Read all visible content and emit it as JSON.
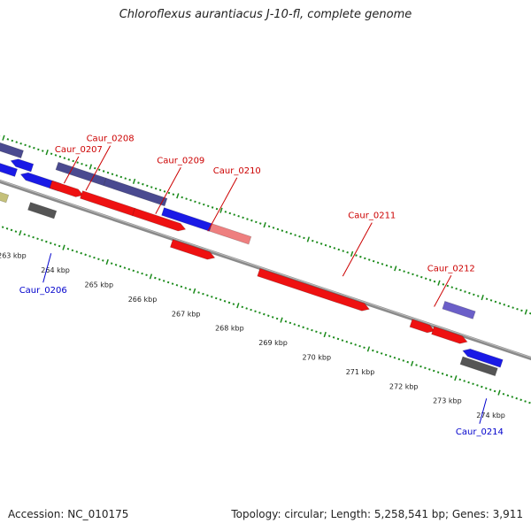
{
  "title": "Chloroflexus aurantiacus J-10-fl, complete genome",
  "footer": {
    "accession": "Accession: NC_010175",
    "stats": "Topology: circular; Length: 5,258,541 bp; Genes: 3,911"
  },
  "colors": {
    "backbone": "#8a8a8a",
    "tick": "#1a8a1a",
    "label_forward": "#cc0000",
    "label_reverse": "#0000cc",
    "red": "#ee1111",
    "blue": "#1a1ae6",
    "slate": "#4a4a90",
    "pink": "#ee7f7f",
    "khaki": "#c4c07a",
    "gray": "#555555",
    "purple": "#6b5fc8"
  },
  "kbp_ticks": [
    {
      "kbp": 263,
      "label": "263 kbp"
    },
    {
      "kbp": 264,
      "label": "264 kbp"
    },
    {
      "kbp": 265,
      "label": "265 kbp"
    },
    {
      "kbp": 266,
      "label": "266 kbp"
    },
    {
      "kbp": 267,
      "label": "267 kbp"
    },
    {
      "kbp": 268,
      "label": "268 kbp"
    },
    {
      "kbp": 269,
      "label": "269 kbp"
    },
    {
      "kbp": 270,
      "label": "270 kbp"
    },
    {
      "kbp": 271,
      "label": "271 kbp"
    },
    {
      "kbp": 272,
      "label": "272 kbp"
    },
    {
      "kbp": 273,
      "label": "273 kbp"
    },
    {
      "kbp": 274,
      "label": "274 kbp"
    }
  ],
  "gene_labels": [
    {
      "text": "Caur_0206",
      "strand": "reverse"
    },
    {
      "text": "Caur_0207",
      "strand": "forward"
    },
    {
      "text": "Caur_0208",
      "strand": "forward"
    },
    {
      "text": "Caur_0209",
      "strand": "forward"
    },
    {
      "text": "Caur_0210",
      "strand": "forward"
    },
    {
      "text": "Caur_0211",
      "strand": "forward"
    },
    {
      "text": "Caur_0212",
      "strand": "forward"
    },
    {
      "text": "Caur_0214",
      "strand": "reverse"
    }
  ],
  "features": [
    {
      "row": -3,
      "start": 261.7,
      "end": 262.5,
      "color": "slate",
      "dir": "none"
    },
    {
      "row": -3,
      "start": 263.3,
      "end": 264.4,
      "color": "slate",
      "dir": "none"
    },
    {
      "row": -3,
      "start": 264.4,
      "end": 265.8,
      "color": "slate",
      "dir": "none"
    },
    {
      "row": -2,
      "start": 262.45,
      "end": 262.8,
      "color": "blue",
      "dir": "left"
    },
    {
      "row": -2,
      "start": 265.8,
      "end": 266.9,
      "color": "blue",
      "dir": "none"
    },
    {
      "row": -2,
      "start": 266.9,
      "end": 267.8,
      "color": "pink",
      "dir": "none"
    },
    {
      "row": -2,
      "start": 272.25,
      "end": 272.95,
      "color": "purple",
      "dir": "none"
    },
    {
      "row": -1,
      "start": 261.5,
      "end": 262.5,
      "color": "blue",
      "dir": "left"
    },
    {
      "row": -1,
      "start": 262.75,
      "end": 263.5,
      "color": "blue",
      "dir": "left"
    },
    {
      "row": -1,
      "start": 263.3,
      "end": 263.9,
      "color": "red",
      "dir": "right"
    },
    {
      "row": -1,
      "start": 264.0,
      "end": 265.2,
      "color": "red",
      "dir": "right"
    },
    {
      "row": -1,
      "start": 265.2,
      "end": 266.25,
      "color": "red",
      "dir": "right"
    },
    {
      "row": 0,
      "start": 266.2,
      "end": 267.05,
      "color": "red",
      "dir": "right"
    },
    {
      "row": 0,
      "start": 268.2,
      "end": 270.6,
      "color": "red",
      "dir": "right"
    },
    {
      "row": 0,
      "start": 271.7,
      "end": 272.1,
      "color": "red",
      "dir": "right"
    },
    {
      "row": 0,
      "start": 272.2,
      "end": 272.85,
      "color": "red",
      "dir": "right"
    },
    {
      "row": 1,
      "start": 261.4,
      "end": 262.5,
      "color": "khaki",
      "dir": "none"
    },
    {
      "row": 1,
      "start": 263.0,
      "end": 263.6,
      "color": "gray",
      "dir": "none"
    },
    {
      "row": 1,
      "start": 273.1,
      "end": 273.85,
      "color": "blue",
      "dir": "left"
    },
    {
      "row": 2,
      "start": 273.0,
      "end": 273.8,
      "color": "gray",
      "dir": "none"
    }
  ]
}
